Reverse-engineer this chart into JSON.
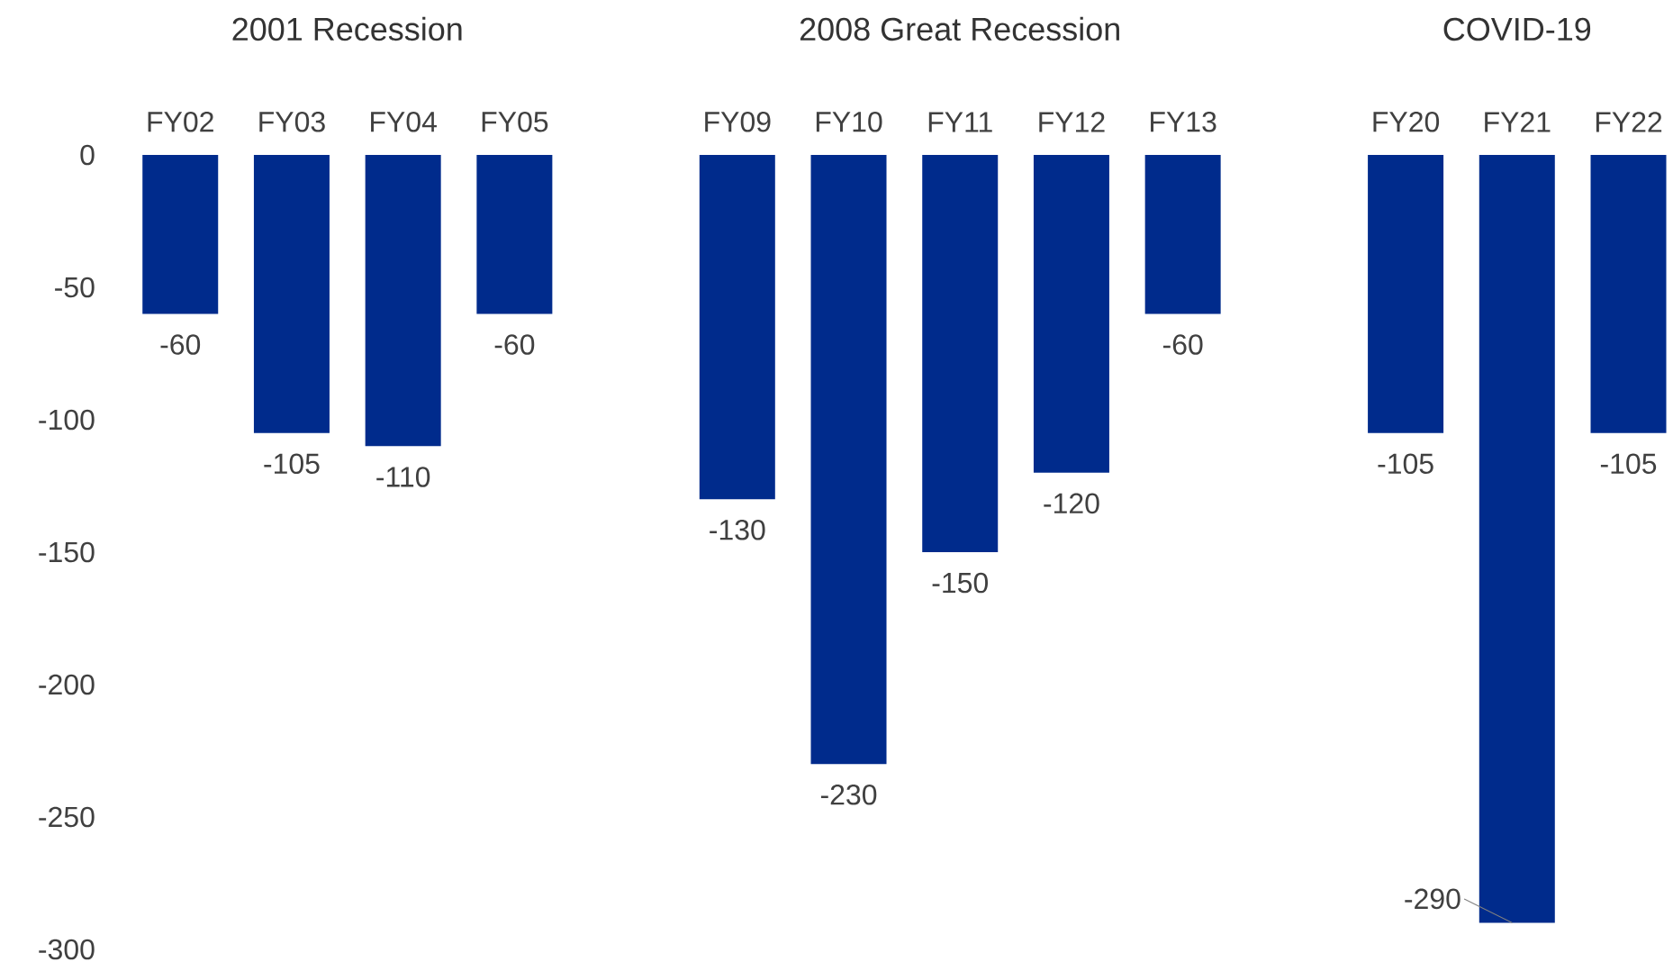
{
  "chart_data": {
    "type": "bar",
    "categories": [
      "FY02",
      "FY03",
      "FY04",
      "FY05",
      null,
      "FY09",
      "FY10",
      "FY11",
      "FY12",
      "FY13",
      null,
      "FY20",
      "FY21",
      "FY22"
    ],
    "values": [
      -60,
      -105,
      -110,
      -60,
      null,
      -130,
      -230,
      -150,
      -120,
      -60,
      null,
      -105,
      -290,
      -105
    ],
    "color": "#002b8c",
    "ylim": [
      -300,
      0
    ],
    "yticks": [
      -300,
      -250,
      -200,
      -150,
      -100,
      -50,
      0
    ],
    "data_labels": true,
    "grid": false,
    "annotations": [
      "2001 Recession",
      "2008 Great Recession",
      "COVID-19"
    ]
  }
}
